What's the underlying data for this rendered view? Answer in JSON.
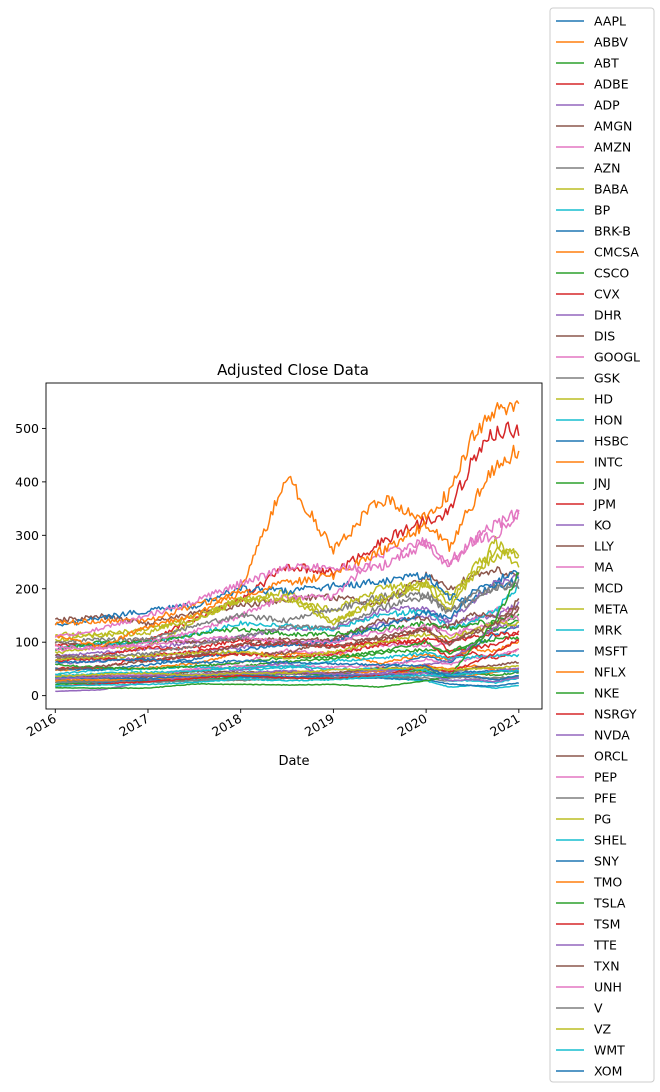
{
  "chart_data": {
    "type": "line",
    "title": "Adjusted Close Data",
    "xlabel": "Date",
    "ylabel": "",
    "x_ticks": [
      "2016",
      "2017",
      "2018",
      "2019",
      "2020",
      "2021"
    ],
    "y_ticks": [
      0,
      100,
      200,
      300,
      400,
      500
    ],
    "xlim": [
      2015.9,
      2021.25
    ],
    "ylim": [
      -25,
      585
    ],
    "grid": false,
    "legend_position": "right, outside plot",
    "colors": [
      "#1f77b4",
      "#ff7f0e",
      "#2ca02c",
      "#d62728",
      "#9467bd",
      "#8c564b",
      "#e377c2",
      "#7f7f7f",
      "#bcbd22",
      "#17becf"
    ],
    "x": [
      2016.0,
      2016.5,
      2017.0,
      2017.5,
      2018.0,
      2018.5,
      2019.0,
      2019.5,
      2020.0,
      2020.25,
      2020.5,
      2020.75,
      2021.0
    ],
    "series": [
      {
        "name": "AAPL",
        "values": [
          24,
          23,
          28,
          36,
          41,
          46,
          38,
          49,
          74,
          61,
          90,
          114,
          132
        ]
      },
      {
        "name": "ABBV",
        "values": [
          47,
          50,
          52,
          60,
          80,
          78,
          80,
          60,
          78,
          68,
          88,
          83,
          103
        ]
      },
      {
        "name": "ABT",
        "values": [
          38,
          36,
          38,
          45,
          55,
          64,
          68,
          80,
          86,
          84,
          98,
          106,
          107
        ]
      },
      {
        "name": "ADBE",
        "values": [
          94,
          95,
          105,
          142,
          180,
          243,
          230,
          285,
          330,
          345,
          440,
          495,
          500
        ]
      },
      {
        "name": "ADP",
        "values": [
          75,
          80,
          88,
          100,
          110,
          125,
          125,
          158,
          165,
          135,
          145,
          150,
          170
        ]
      },
      {
        "name": "AMGN",
        "values": [
          140,
          148,
          135,
          155,
          168,
          180,
          185,
          170,
          225,
          200,
          225,
          235,
          225
        ]
      },
      {
        "name": "AMZN",
        "values": [
          32,
          37,
          38,
          50,
          62,
          85,
          78,
          95,
          94,
          95,
          140,
          160,
          162
        ]
      },
      {
        "name": "AZN",
        "values": [
          28,
          27,
          26,
          30,
          33,
          35,
          37,
          40,
          47,
          41,
          52,
          51,
          49
        ]
      },
      {
        "name": "BABA",
        "values": [
          80,
          90,
          90,
          140,
          180,
          195,
          140,
          175,
          210,
          190,
          220,
          290,
          240
        ]
      },
      {
        "name": "BP",
        "values": [
          24,
          27,
          28,
          30,
          34,
          35,
          32,
          33,
          28,
          16,
          19,
          14,
          19
        ]
      },
      {
        "name": "BRK-B",
        "values": [
          130,
          145,
          160,
          168,
          200,
          195,
          205,
          212,
          225,
          185,
          180,
          215,
          232
        ]
      },
      {
        "name": "CMCSA",
        "values": [
          26,
          28,
          31,
          36,
          38,
          33,
          34,
          40,
          44,
          36,
          38,
          44,
          51
        ]
      },
      {
        "name": "CSCO",
        "values": [
          21,
          25,
          27,
          28,
          36,
          40,
          40,
          50,
          46,
          38,
          42,
          38,
          44
        ]
      },
      {
        "name": "CVX",
        "values": [
          68,
          75,
          90,
          88,
          105,
          100,
          95,
          100,
          100,
          70,
          80,
          68,
          85
        ]
      },
      {
        "name": "DHR",
        "values": [
          60,
          65,
          72,
          82,
          90,
          100,
          105,
          135,
          150,
          140,
          175,
          210,
          220
        ]
      },
      {
        "name": "DIS",
        "values": [
          100,
          90,
          105,
          100,
          105,
          105,
          105,
          140,
          145,
          100,
          115,
          125,
          180
        ]
      },
      {
        "name": "GOOGL",
        "values": [
          38,
          37,
          40,
          48,
          55,
          56,
          53,
          56,
          68,
          58,
          70,
          75,
          87
        ]
      },
      {
        "name": "GSK",
        "values": [
          32,
          32,
          30,
          32,
          28,
          33,
          32,
          35,
          38,
          33,
          35,
          32,
          33
        ]
      },
      {
        "name": "HD",
        "values": [
          115,
          115,
          125,
          140,
          180,
          180,
          160,
          200,
          210,
          170,
          240,
          270,
          265
        ]
      },
      {
        "name": "HON",
        "values": [
          88,
          98,
          100,
          115,
          135,
          130,
          125,
          150,
          160,
          125,
          140,
          160,
          205
        ]
      },
      {
        "name": "HSBC",
        "values": [
          30,
          25,
          30,
          35,
          40,
          35,
          34,
          33,
          30,
          22,
          19,
          18,
          24
        ]
      },
      {
        "name": "INTC",
        "values": [
          29,
          30,
          32,
          32,
          41,
          45,
          43,
          45,
          57,
          50,
          56,
          48,
          48
        ]
      },
      {
        "name": "JNJ",
        "values": [
          85,
          100,
          100,
          115,
          125,
          115,
          115,
          125,
          135,
          125,
          135,
          140,
          150
        ]
      },
      {
        "name": "JPM",
        "values": [
          52,
          52,
          75,
          82,
          96,
          97,
          90,
          100,
          128,
          83,
          90,
          95,
          120
        ]
      },
      {
        "name": "KO",
        "values": [
          35,
          37,
          36,
          39,
          41,
          40,
          42,
          47,
          52,
          42,
          43,
          46,
          52
        ]
      },
      {
        "name": "LLY",
        "values": [
          75,
          68,
          68,
          75,
          78,
          80,
          105,
          105,
          125,
          130,
          155,
          145,
          165
        ]
      },
      {
        "name": "MA",
        "values": [
          92,
          88,
          100,
          120,
          150,
          185,
          185,
          265,
          290,
          250,
          290,
          320,
          345
        ]
      },
      {
        "name": "MCD",
        "values": [
          100,
          105,
          105,
          130,
          150,
          140,
          160,
          185,
          190,
          160,
          175,
          205,
          205
        ]
      },
      {
        "name": "META",
        "values": [
          104,
          114,
          117,
          150,
          180,
          185,
          135,
          185,
          205,
          160,
          225,
          260,
          270
        ]
      },
      {
        "name": "MRK",
        "values": [
          40,
          48,
          50,
          55,
          48,
          52,
          65,
          70,
          80,
          70,
          72,
          75,
          75
        ]
      },
      {
        "name": "MSFT",
        "values": [
          50,
          48,
          58,
          68,
          85,
          95,
          100,
          130,
          155,
          145,
          195,
          205,
          215
        ]
      },
      {
        "name": "NFLX",
        "values": [
          110,
          92,
          130,
          150,
          200,
          410,
          270,
          370,
          330,
          380,
          490,
          530,
          540
        ]
      },
      {
        "name": "NKE",
        "values": [
          58,
          52,
          50,
          55,
          62,
          72,
          72,
          82,
          100,
          80,
          95,
          125,
          140
        ]
      },
      {
        "name": "NSRGY",
        "values": [
          65,
          70,
          65,
          75,
          78,
          72,
          78,
          95,
          105,
          100,
          110,
          115,
          115
        ]
      },
      {
        "name": "NVDA",
        "values": [
          8,
          11,
          26,
          36,
          48,
          62,
          34,
          42,
          58,
          65,
          95,
          130,
          130
        ]
      },
      {
        "name": "ORCL",
        "values": [
          33,
          36,
          35,
          45,
          44,
          42,
          42,
          52,
          50,
          45,
          52,
          57,
          63
        ]
      },
      {
        "name": "PEP",
        "values": [
          85,
          90,
          95,
          105,
          110,
          100,
          100,
          120,
          130,
          115,
          125,
          135,
          145
        ]
      },
      {
        "name": "PFE",
        "values": [
          25,
          26,
          25,
          28,
          30,
          32,
          34,
          35,
          33,
          27,
          31,
          34,
          35
        ]
      },
      {
        "name": "PG",
        "values": [
          68,
          72,
          75,
          80,
          82,
          70,
          82,
          100,
          115,
          110,
          120,
          135,
          135
        ]
      },
      {
        "name": "SHEL",
        "values": [
          36,
          42,
          44,
          46,
          52,
          55,
          50,
          50,
          48,
          28,
          28,
          24,
          33
        ]
      },
      {
        "name": "SNY",
        "values": [
          34,
          33,
          32,
          38,
          36,
          34,
          38,
          38,
          42,
          40,
          45,
          46,
          45
        ]
      },
      {
        "name": "TMO",
        "values": [
          135,
          140,
          140,
          170,
          190,
          210,
          225,
          270,
          320,
          280,
          360,
          430,
          460
        ]
      },
      {
        "name": "TSLA",
        "values": [
          15,
          14,
          14,
          22,
          21,
          20,
          21,
          16,
          28,
          36,
          90,
          140,
          230
        ]
      },
      {
        "name": "TSM",
        "values": [
          18,
          22,
          26,
          32,
          38,
          33,
          32,
          38,
          55,
          45,
          60,
          80,
          105
        ]
      },
      {
        "name": "TTE",
        "values": [
          32,
          35,
          38,
          40,
          42,
          47,
          40,
          40,
          42,
          28,
          30,
          26,
          34
        ]
      },
      {
        "name": "TXN",
        "values": [
          48,
          55,
          65,
          75,
          95,
          100,
          90,
          110,
          125,
          95,
          120,
          135,
          160
        ]
      },
      {
        "name": "UNH",
        "values": [
          110,
          125,
          150,
          175,
          210,
          240,
          240,
          240,
          285,
          240,
          290,
          300,
          340
        ]
      },
      {
        "name": "V",
        "values": [
          72,
          75,
          78,
          92,
          110,
          130,
          128,
          165,
          185,
          155,
          190,
          200,
          215
        ]
      },
      {
        "name": "VZ",
        "values": [
          36,
          40,
          42,
          38,
          42,
          42,
          48,
          50,
          52,
          48,
          50,
          52,
          55
        ]
      },
      {
        "name": "WMT",
        "values": [
          18,
          20,
          21,
          25,
          31,
          28,
          30,
          36,
          38,
          38,
          41,
          45,
          47
        ]
      },
      {
        "name": "XOM",
        "values": [
          62,
          65,
          68,
          62,
          65,
          62,
          60,
          58,
          55,
          35,
          36,
          29,
          38
        ]
      }
    ]
  }
}
